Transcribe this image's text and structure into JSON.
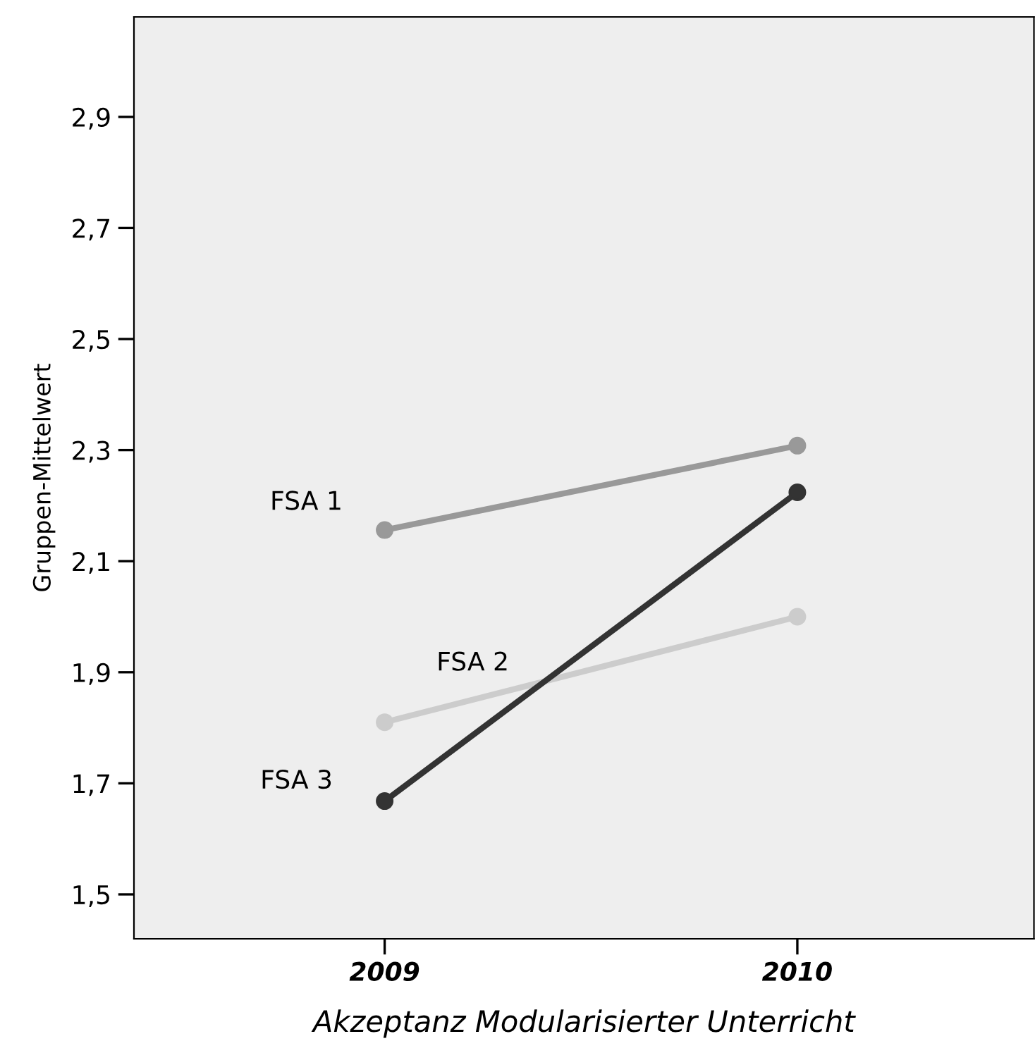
{
  "chart_data": {
    "type": "line",
    "xlabel": "Akzeptanz Modularisierter Unterricht",
    "ylabel": "Gruppen-Mittelwert",
    "categories": [
      "2009",
      "2010"
    ],
    "series": [
      {
        "name": "FSA 1",
        "color": "#999999",
        "values": [
          2.156,
          2.308
        ]
      },
      {
        "name": "FSA 2",
        "color": "#cccccc",
        "values": [
          1.81,
          2.0
        ]
      },
      {
        "name": "FSA 3",
        "color": "#333333",
        "values": [
          1.668,
          2.224
        ]
      }
    ],
    "ylim": [
      1.42,
      3.08
    ],
    "yticks": [
      {
        "value": 1.5,
        "label": "1,5"
      },
      {
        "value": 1.7,
        "label": "1,7"
      },
      {
        "value": 1.9,
        "label": "1,9"
      },
      {
        "value": 2.1,
        "label": "2,1"
      },
      {
        "value": 2.3,
        "label": "2,3"
      },
      {
        "value": 2.5,
        "label": "2,5"
      },
      {
        "value": 2.7,
        "label": "2,7"
      },
      {
        "value": 2.9,
        "label": "2,9"
      }
    ],
    "marker": "circle",
    "line_style": "solid",
    "grid": false,
    "legend": false
  }
}
